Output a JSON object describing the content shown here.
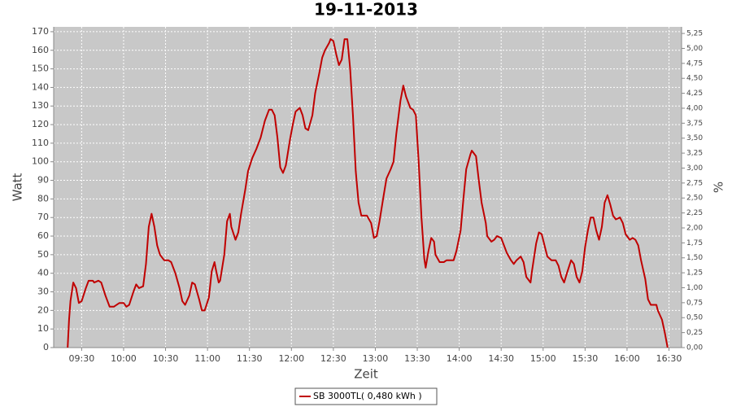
{
  "chart_data": {
    "type": "line",
    "title": "19-11-2013",
    "xlabel": "Zeit",
    "ylabel": "Watt",
    "y2label": "%",
    "x": [
      "09:20",
      "09:21",
      "09:22",
      "09:24",
      "09:26",
      "09:28",
      "09:30",
      "09:33",
      "09:35",
      "09:38",
      "09:39",
      "09:42",
      "09:44",
      "09:47",
      "09:50",
      "09:53",
      "09:57",
      "10:00",
      "10:02",
      "10:04",
      "10:07",
      "10:09",
      "10:11",
      "10:14",
      "10:16",
      "10:18",
      "10:20",
      "10:22",
      "10:24",
      "10:26",
      "10:29",
      "10:32",
      "10:34",
      "10:37",
      "10:40",
      "10:42",
      "10:44",
      "10:47",
      "10:49",
      "10:51",
      "10:54",
      "10:56",
      "10:58",
      "11:01",
      "11:03",
      "11:05",
      "11:06",
      "11:08",
      "11:09",
      "11:12",
      "11:14",
      "11:16",
      "11:17",
      "11:20",
      "11:22",
      "11:24",
      "11:27",
      "11:29",
      "11:32",
      "11:35",
      "11:38",
      "11:41",
      "11:44",
      "11:46",
      "11:48",
      "11:50",
      "11:52",
      "11:54",
      "11:56",
      "11:59",
      "12:01",
      "12:03",
      "12:06",
      "12:08",
      "12:10",
      "12:12",
      "12:15",
      "12:17",
      "12:20",
      "12:22",
      "12:24",
      "12:27",
      "12:28",
      "12:30",
      "12:32",
      "12:34",
      "12:36",
      "12:38",
      "12:40",
      "12:42",
      "12:44",
      "12:46",
      "12:48",
      "12:50",
      "12:52",
      "12:54",
      "12:57",
      "12:59",
      "13:01",
      "13:03",
      "13:06",
      "13:08",
      "13:11",
      "13:13",
      "13:15",
      "13:18",
      "13:20",
      "13:22",
      "13:25",
      "13:27",
      "13:29",
      "13:31",
      "13:33",
      "13:35",
      "13:36",
      "13:38",
      "13:40",
      "13:42",
      "13:43",
      "13:46",
      "13:49",
      "13:51",
      "13:54",
      "13:56",
      "13:58",
      "14:01",
      "14:03",
      "14:05",
      "14:08",
      "14:09",
      "14:12",
      "14:14",
      "14:16",
      "14:19",
      "14:20",
      "14:23",
      "14:25",
      "14:27",
      "14:30",
      "14:32",
      "14:34",
      "14:37",
      "14:39",
      "14:41",
      "14:44",
      "14:46",
      "14:48",
      "14:51",
      "14:52",
      "14:55",
      "14:57",
      "14:59",
      "15:01",
      "15:03",
      "15:06",
      "15:09",
      "15:11",
      "15:13",
      "15:15",
      "15:17",
      "15:20",
      "15:22",
      "15:24",
      "15:26",
      "15:28",
      "15:30",
      "15:32",
      "15:34",
      "15:36",
      "15:38",
      "15:40",
      "15:42",
      "15:44",
      "15:46",
      "15:48",
      "15:50",
      "15:52",
      "15:55",
      "15:57",
      "15:59",
      "16:02",
      "16:04",
      "16:06",
      "16:08",
      "16:10",
      "16:13",
      "16:15",
      "16:17",
      "16:19",
      "16:21",
      "16:22",
      "16:25",
      "16:27",
      "16:29"
    ],
    "series": [
      {
        "name": "SB 3000TL( 0,480 kWh )",
        "color": "#c00000",
        "values": [
          0,
          15,
          25,
          35,
          32,
          24,
          25,
          32,
          36,
          36,
          35,
          36,
          35,
          28,
          22,
          22,
          24,
          24,
          22,
          23,
          30,
          34,
          32,
          33,
          45,
          65,
          72,
          65,
          55,
          50,
          47,
          47,
          46,
          40,
          32,
          25,
          23,
          28,
          35,
          34,
          26,
          20,
          20,
          27,
          41,
          46,
          42,
          35,
          36,
          50,
          68,
          72,
          65,
          58,
          62,
          72,
          85,
          95,
          102,
          107,
          113,
          122,
          128,
          128,
          125,
          113,
          97,
          94,
          98,
          112,
          120,
          127,
          129,
          125,
          118,
          117,
          125,
          137,
          148,
          156,
          160,
          164,
          166,
          165,
          158,
          152,
          155,
          166,
          166,
          150,
          125,
          95,
          78,
          71,
          71,
          71,
          67,
          59,
          60,
          68,
          82,
          91,
          96,
          100,
          115,
          133,
          141,
          135,
          129,
          128,
          125,
          100,
          70,
          48,
          43,
          52,
          59,
          57,
          50,
          46,
          46,
          47,
          47,
          47,
          52,
          63,
          80,
          96,
          104,
          106,
          103,
          90,
          78,
          67,
          60,
          57,
          58,
          60,
          59,
          55,
          51,
          47,
          45,
          47,
          49,
          46,
          38,
          35,
          41,
          56,
          62,
          61,
          55,
          49,
          47,
          47,
          44,
          38,
          35,
          40,
          47,
          45,
          38,
          35,
          41,
          54,
          63,
          70,
          70,
          63,
          58,
          65,
          78,
          82,
          77,
          71,
          69,
          70,
          67,
          61,
          58,
          59,
          58,
          55,
          47,
          37,
          26,
          23,
          23,
          23,
          20,
          15,
          8,
          0
        ]
      }
    ],
    "xlim": [
      "09:10",
      "16:39"
    ],
    "xticks": [
      "09:30",
      "10:00",
      "10:30",
      "11:00",
      "11:30",
      "12:00",
      "12:30",
      "13:00",
      "13:30",
      "14:00",
      "14:30",
      "15:00",
      "15:30",
      "16:00",
      "16:30"
    ],
    "ylim": [
      0,
      172.6
    ],
    "yticks": [
      0,
      10,
      20,
      30,
      40,
      50,
      60,
      70,
      80,
      90,
      100,
      110,
      120,
      130,
      140,
      150,
      160,
      170
    ],
    "y2lim": [
      0,
      5.36
    ],
    "y2ticks": [
      {
        "value": 0,
        "label": "0,00"
      },
      {
        "value": 0.25,
        "label": "0,25"
      },
      {
        "value": 0.5,
        "label": "0,50"
      },
      {
        "value": 0.75,
        "label": "0,75"
      },
      {
        "value": 1,
        "label": "1,00"
      },
      {
        "value": 1.25,
        "label": "1,25"
      },
      {
        "value": 1.5,
        "label": "1,50"
      },
      {
        "value": 1.75,
        "label": "1,75"
      },
      {
        "value": 2,
        "label": "2,00"
      },
      {
        "value": 2.25,
        "label": "2,25"
      },
      {
        "value": 2.5,
        "label": "2,50"
      },
      {
        "value": 2.75,
        "label": "2,75"
      },
      {
        "value": 3,
        "label": "3,00"
      },
      {
        "value": 3.25,
        "label": "3,25"
      },
      {
        "value": 3.5,
        "label": "3,50"
      },
      {
        "value": 3.75,
        "label": "3,75"
      },
      {
        "value": 4,
        "label": "4,00"
      },
      {
        "value": 4.25,
        "label": "4,25"
      },
      {
        "value": 4.5,
        "label": "4,50"
      },
      {
        "value": 4.75,
        "label": "4,75"
      },
      {
        "value": 5,
        "label": "5,00"
      },
      {
        "value": 5.25,
        "label": "5,25"
      }
    ],
    "grid": true,
    "legend": "bottom"
  }
}
